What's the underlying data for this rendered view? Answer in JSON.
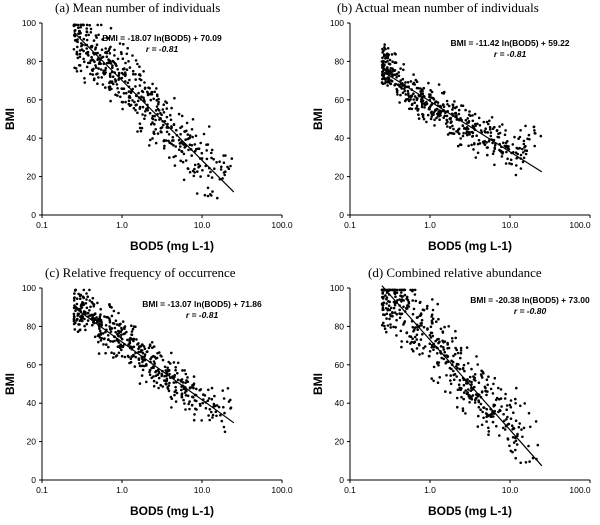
{
  "chart_data": [
    {
      "type": "scatter",
      "title": "(a) Mean number of individuals",
      "xlabel": "BOD5 (mg L-1)",
      "ylabel": "BMI",
      "xscale": "log",
      "xlim": [
        0.1,
        100
      ],
      "ylim": [
        0,
        100
      ],
      "xticks": [
        "0.1",
        "1.0",
        "10.0",
        "100.0"
      ],
      "yticks": [
        "0",
        "20",
        "40",
        "60",
        "80",
        "100"
      ],
      "equation": "BMI = -18.07 ln(BOD5) + 70.09",
      "r_label": "r = -0.81",
      "fit": {
        "slope": -18.07,
        "intercept": 70.09,
        "x_range": [
          0.25,
          25
        ]
      },
      "x": [
        0.25,
        0.3,
        0.35,
        0.4,
        0.45,
        0.5,
        0.6,
        0.7,
        0.8,
        0.9,
        1.0,
        1.2,
        1.5,
        2.0,
        2.5,
        3.0,
        4.0,
        5.0,
        6.0,
        8.0,
        10.0,
        15.0,
        25.0
      ],
      "y": [
        94,
        91,
        89,
        86,
        85,
        82,
        80,
        76,
        78,
        73,
        70,
        68,
        64,
        58,
        55,
        49,
        44,
        42,
        38,
        33,
        30,
        24,
        28
      ],
      "n_points": 500,
      "spread": 11
    },
    {
      "type": "scatter",
      "title": "(b) Actual mean number of individuals",
      "xlabel": "BOD5 (mg L-1)",
      "ylabel": "BMI",
      "xscale": "log",
      "xlim": [
        0.1,
        100
      ],
      "ylim": [
        0,
        100
      ],
      "xticks": [
        "0.1",
        "1.0",
        "10.0",
        "100.0"
      ],
      "yticks": [
        "0",
        "20",
        "40",
        "60",
        "80",
        "100"
      ],
      "equation": "BMI = -11.42 ln(BOD5) + 59.22",
      "r_label": "r = -0.81",
      "fit": {
        "slope": -11.42,
        "intercept": 59.22,
        "x_range": [
          0.25,
          25
        ]
      },
      "x": [
        0.25,
        0.3,
        0.4,
        0.5,
        0.6,
        0.8,
        1.0,
        1.5,
        2.0,
        3.0,
        4.0,
        5.0,
        8.0,
        10.0,
        25.0
      ],
      "y": [
        77,
        76,
        70,
        67,
        64,
        61,
        58,
        54,
        50,
        46,
        43,
        41,
        36,
        33,
        39
      ],
      "n_points": 500,
      "spread": 7
    },
    {
      "type": "scatter",
      "title": "(c) Relative frequency of occurrence",
      "xlabel": "BOD5 (mg L-1)",
      "ylabel": "BMI",
      "xscale": "log",
      "xlim": [
        0.1,
        100
      ],
      "ylim": [
        0,
        100
      ],
      "xticks": [
        "0.1",
        "1.0",
        "10.0",
        "100.0"
      ],
      "yticks": [
        "0",
        "20",
        "40",
        "60",
        "80",
        "100"
      ],
      "equation": "BMI = -13.07 ln(BOD5) + 71.86",
      "r_label": "r = -0.81",
      "fit": {
        "slope": -13.07,
        "intercept": 71.86,
        "x_range": [
          0.25,
          25
        ]
      },
      "x": [
        0.25,
        0.3,
        0.4,
        0.5,
        0.6,
        0.8,
        1.0,
        1.5,
        2.0,
        3.0,
        4.0,
        6.0,
        10.0,
        25.0
      ],
      "y": [
        90,
        89,
        85,
        82,
        80,
        76,
        73,
        68,
        63,
        57,
        54,
        48,
        42,
        38
      ],
      "n_points": 500,
      "spread": 8
    },
    {
      "type": "scatter",
      "title": "(d) Combined relative abundance",
      "xlabel": "BOD5 (mg L-1)",
      "ylabel": "BMI",
      "xscale": "log",
      "xlim": [
        0.1,
        100
      ],
      "ylim": [
        0,
        100
      ],
      "xticks": [
        "0.1",
        "1.0",
        "10.0",
        "100.0"
      ],
      "yticks": [
        "0",
        "20",
        "40",
        "60",
        "80",
        "100"
      ],
      "equation": "BMI = -20.38 ln(BOD5) + 73.00",
      "r_label": "r = -0.80",
      "fit": {
        "slope": -20.38,
        "intercept": 73.0,
        "x_range": [
          0.25,
          25
        ]
      },
      "x": [
        0.25,
        0.3,
        0.4,
        0.5,
        0.6,
        0.8,
        1.0,
        1.5,
        2.0,
        3.0,
        4.0,
        6.0,
        10.0,
        25.0
      ],
      "y": [
        97,
        95,
        92,
        88,
        85,
        80,
        74,
        66,
        60,
        50,
        44,
        36,
        28,
        25
      ],
      "n_points": 500,
      "spread": 12
    }
  ]
}
